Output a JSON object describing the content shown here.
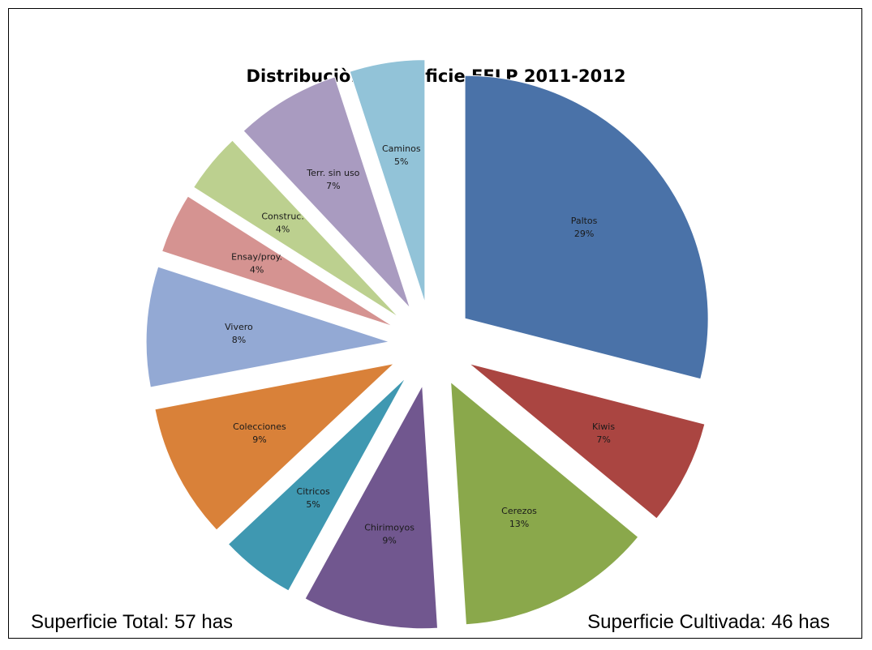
{
  "footer": {
    "total": "Superficie Total: 57 has",
    "cultivated": "Superficie Cultivada: 46 has"
  },
  "chart_data": {
    "type": "pie",
    "title": "Distribuciòn Superficie EELP 2011-2012",
    "exploded": true,
    "slices": [
      {
        "label": "Paltos",
        "percent_label": "29%",
        "value": 29,
        "color": "#4a72a8"
      },
      {
        "label": "Kiwis",
        "percent_label": "7%",
        "value": 7,
        "color": "#aa4541"
      },
      {
        "label": "Cerezos",
        "percent_label": "13%",
        "value": 13,
        "color": "#8aa84b"
      },
      {
        "label": "Chirimoyos",
        "percent_label": "9%",
        "value": 9,
        "color": "#71578f"
      },
      {
        "label": "Citricos",
        "percent_label": "5%",
        "value": 5,
        "color": "#3f98b1"
      },
      {
        "label": "Colecciones",
        "percent_label": "9%",
        "value": 9,
        "color": "#d98139"
      },
      {
        "label": "Vivero",
        "percent_label": "8%",
        "value": 8,
        "color": "#93a9d4"
      },
      {
        "label": "Ensay/proy.",
        "percent_label": "4%",
        "value": 4,
        "color": "#d59391"
      },
      {
        "label": "Construc.",
        "percent_label": "4%",
        "value": 4,
        "color": "#bcd08f"
      },
      {
        "label": "Terr. sin uso",
        "percent_label": "7%",
        "value": 7,
        "color": "#a99bc0"
      },
      {
        "label": "Caminos",
        "percent_label": "5%",
        "value": 5,
        "color": "#92c3d8"
      }
    ]
  }
}
